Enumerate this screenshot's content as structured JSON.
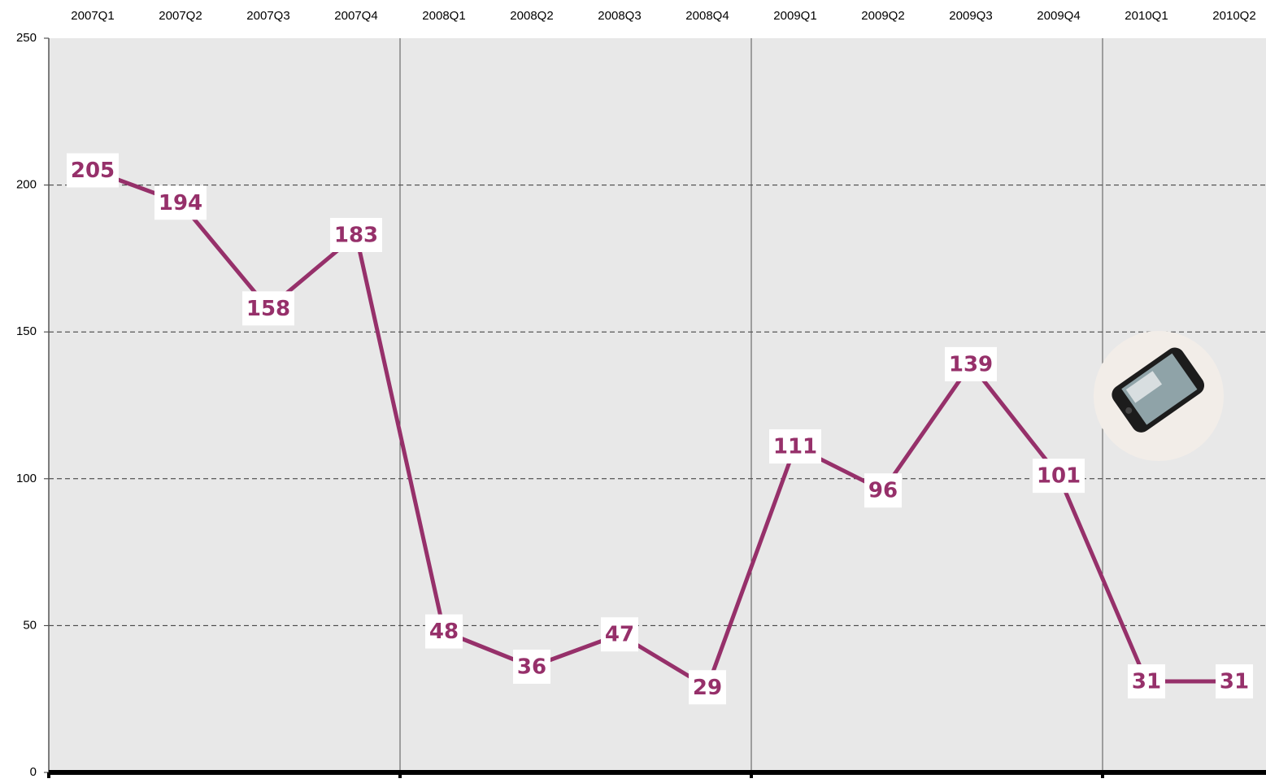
{
  "chart_data": {
    "type": "line",
    "categories": [
      "2007Q1",
      "2007Q2",
      "2007Q3",
      "2007Q4",
      "2008Q1",
      "2008Q2",
      "2008Q3",
      "2008Q4",
      "2009Q1",
      "2009Q2",
      "2009Q3",
      "2009Q4",
      "2010Q1",
      "2010Q2"
    ],
    "values": [
      205,
      194,
      158,
      183,
      48,
      36,
      47,
      29,
      111,
      96,
      139,
      101,
      31,
      31
    ],
    "color": "#96306a",
    "ylim": [
      0,
      250
    ],
    "yticks": [
      0,
      50,
      100,
      150,
      200,
      250
    ],
    "grid": true
  }
}
